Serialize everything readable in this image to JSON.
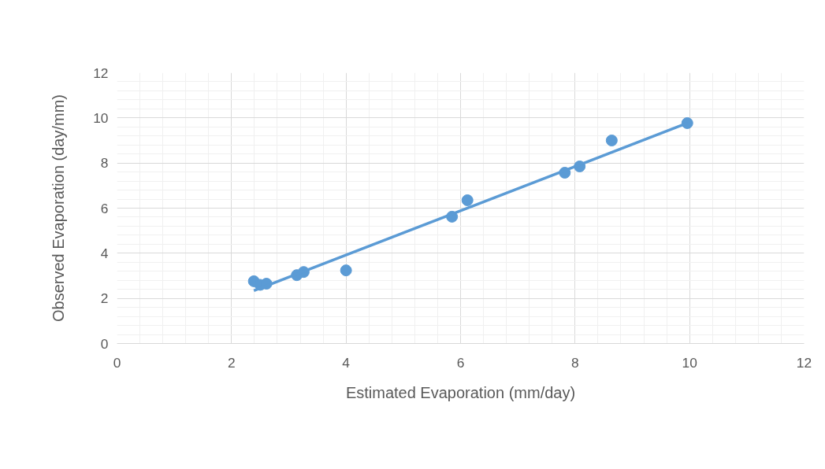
{
  "chart_data": {
    "type": "scatter",
    "xlabel": "Estimated Evaporation (mm/day)",
    "ylabel": "Observed Evaporation (day/mm)",
    "xlim": [
      0,
      12
    ],
    "ylim": [
      0,
      12
    ],
    "xticks": [
      0,
      2,
      4,
      6,
      8,
      10,
      12
    ],
    "yticks": [
      0,
      2,
      4,
      6,
      8,
      10,
      12
    ],
    "grid": true,
    "series": [
      {
        "marker": "circle",
        "color": "#5b9bd5",
        "x": [
          2.39,
          2.5,
          2.61,
          3.14,
          3.26,
          4.0,
          5.85,
          6.12,
          7.82,
          8.08,
          8.64,
          9.96
        ],
        "values": [
          2.76,
          2.6,
          2.65,
          3.03,
          3.17,
          3.24,
          5.62,
          6.35,
          7.57,
          7.85,
          9.0,
          9.77
        ]
      },
      {
        "type": "line",
        "marker": "none",
        "color": "#5b9bd5",
        "line_style": "solid",
        "x": [
          2.39,
          9.96
        ],
        "values": [
          2.34,
          9.77
        ]
      }
    ]
  }
}
